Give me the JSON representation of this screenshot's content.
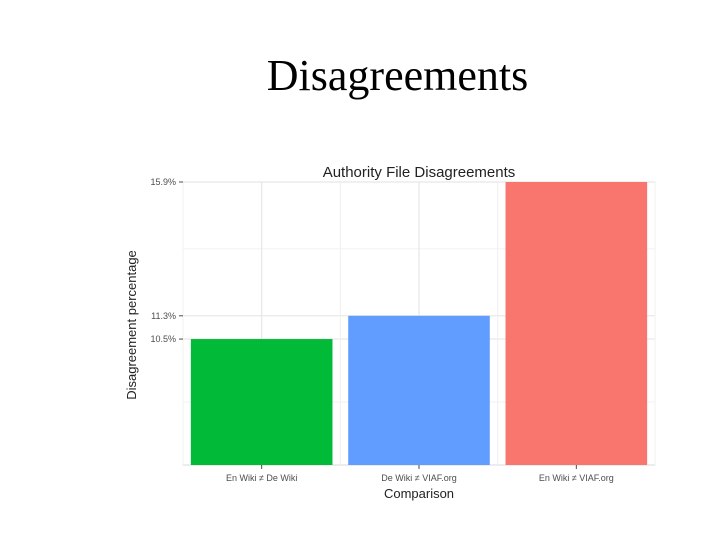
{
  "slide": {
    "title": "Disagreements"
  },
  "chart_data": {
    "type": "bar",
    "title": "Authority File Disagreements",
    "xlabel": "Comparison",
    "ylabel": "Disagreement percentage",
    "categories": [
      "En Wiki ≠ De Wiki",
      "De Wiki ≠ VIAF.org",
      "En Wiki ≠ VIAF.org"
    ],
    "values": [
      10.5,
      11.3,
      15.9
    ],
    "value_labels": [
      "10.5%",
      "11.3%",
      "15.9%"
    ],
    "ylim": [
      6.17,
      15.9
    ],
    "grid": true,
    "legend": "none",
    "colors": [
      "#00ba38",
      "#619cff",
      "#f8766d"
    ]
  }
}
